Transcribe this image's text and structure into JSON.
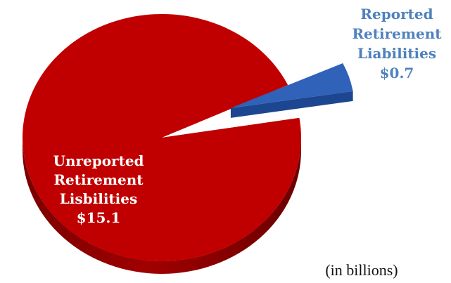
{
  "chart_data": {
    "type": "pie",
    "categories": [
      "Unreported Retirement Lisbilities",
      "Reported Retirement Liabilities"
    ],
    "values": [
      15.1,
      0.7
    ],
    "value_labels": [
      "$15.1",
      "$0.7"
    ],
    "label_lines": [
      [
        "Unreported",
        "Retirement",
        "Lisbilities",
        "$15.1"
      ],
      [
        "Reported",
        "Retirement",
        "Liabilities",
        "$0.7"
      ]
    ],
    "colors": [
      "#c00000",
      "#2f62b8"
    ],
    "exploded_slice": 1,
    "three_d": true,
    "unit_note": "(in billions)"
  }
}
